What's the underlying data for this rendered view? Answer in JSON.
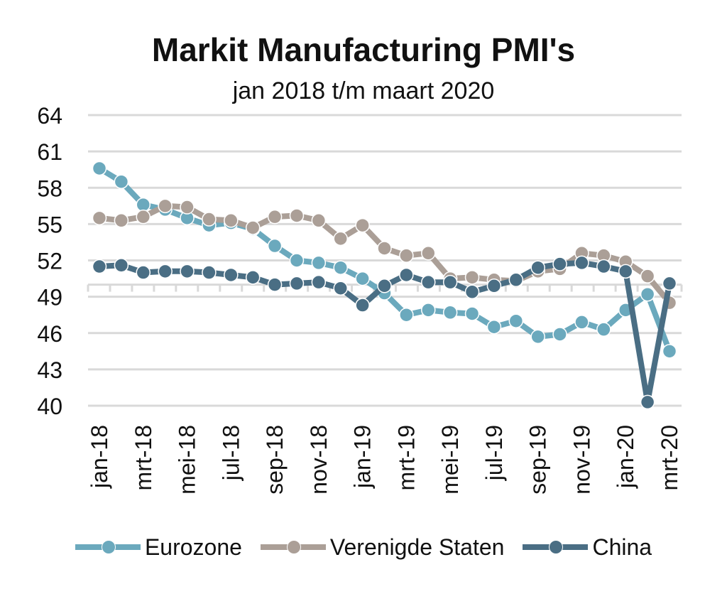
{
  "title": "Markit Manufacturing PMI's",
  "subtitle": "jan 2018 t/m maart 2020",
  "colors": {
    "Eurozone": "#6ba9bd",
    "Verenigde Staten": "#ab9f97",
    "China": "#4a6e84",
    "grid": "#d9d9d9",
    "text": "#111111"
  },
  "chart_data": {
    "type": "line",
    "title": "Markit Manufacturing PMI's",
    "subtitle": "jan 2018 t/m maart 2020",
    "xlabel": "",
    "ylabel": "",
    "ylim": [
      40,
      64
    ],
    "yticks": [
      40,
      43,
      46,
      49,
      52,
      55,
      58,
      61,
      64
    ],
    "grid": true,
    "legend": "bottom",
    "x": [
      "jan-18",
      "feb-18",
      "mrt-18",
      "apr-18",
      "mei-18",
      "jun-18",
      "jul-18",
      "aug-18",
      "sep-18",
      "okt-18",
      "nov-18",
      "dec-18",
      "jan-19",
      "feb-19",
      "mrt-19",
      "apr-19",
      "mei-19",
      "jun-19",
      "jul-19",
      "aug-19",
      "sep-19",
      "okt-19",
      "nov-19",
      "dec-19",
      "jan-20",
      "feb-20",
      "mrt-20"
    ],
    "xtick_labels": [
      "jan-18",
      "mrt-18",
      "mei-18",
      "jul-18",
      "sep-18",
      "nov-18",
      "jan-19",
      "mrt-19",
      "mei-19",
      "jul-19",
      "sep-19",
      "nov-19",
      "jan-20",
      "mrt-20"
    ],
    "series": [
      {
        "name": "Eurozone",
        "values": [
          59.6,
          58.5,
          56.6,
          56.2,
          55.5,
          54.9,
          55.1,
          54.6,
          53.2,
          52.0,
          51.8,
          51.4,
          50.5,
          49.3,
          47.5,
          47.9,
          47.7,
          47.6,
          46.5,
          47.0,
          45.7,
          45.9,
          46.9,
          46.3,
          47.9,
          49.2,
          44.5
        ]
      },
      {
        "name": "Verenigde Staten",
        "values": [
          55.5,
          55.3,
          55.6,
          56.5,
          56.4,
          55.4,
          55.3,
          54.7,
          55.6,
          55.7,
          55.3,
          53.8,
          54.9,
          53.0,
          52.4,
          52.6,
          50.5,
          50.6,
          50.4,
          50.3,
          51.1,
          51.3,
          52.6,
          52.4,
          51.9,
          50.7,
          48.5
        ]
      },
      {
        "name": "China",
        "values": [
          51.5,
          51.6,
          51.0,
          51.1,
          51.1,
          51.0,
          50.8,
          50.6,
          50.0,
          50.1,
          50.2,
          49.7,
          48.3,
          49.9,
          50.8,
          50.2,
          50.2,
          49.4,
          49.9,
          50.4,
          51.4,
          51.7,
          51.8,
          51.5,
          51.1,
          40.3,
          50.1
        ]
      }
    ]
  }
}
